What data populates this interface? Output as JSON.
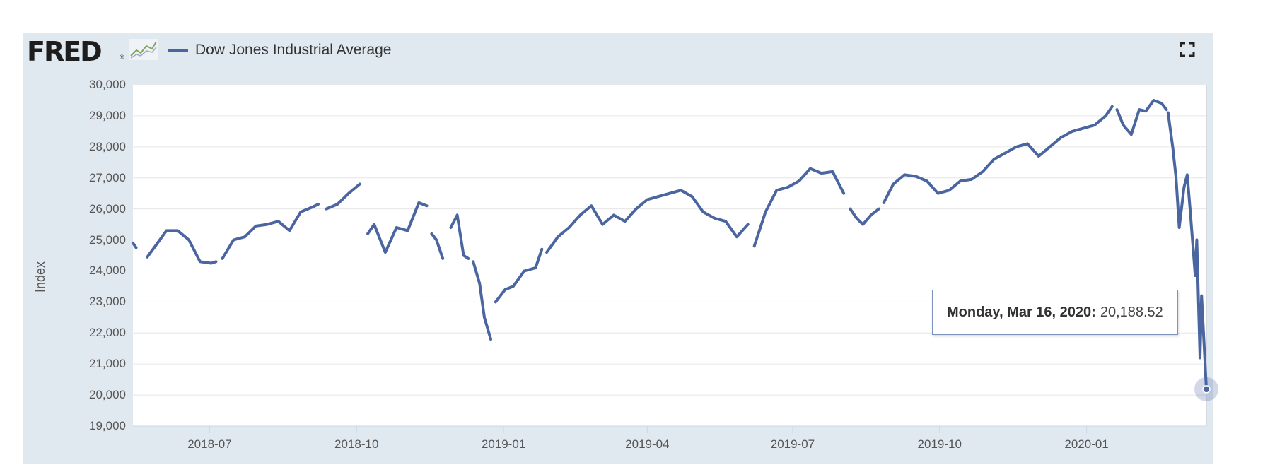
{
  "header": {
    "logo_text": "FRED",
    "logo_reg": "®",
    "legend_label": "Dow Jones Industrial Average",
    "line_color": "#4a65a0"
  },
  "tooltip": {
    "date_label": "Monday, Mar 16, 2020:",
    "value_label": "20,188.52"
  },
  "chart_data": {
    "type": "line",
    "title": "",
    "xlabel": "",
    "ylabel": "Index",
    "ylim": [
      19000,
      30000
    ],
    "xlim": [
      "2018-05-14",
      "2020-03-16"
    ],
    "y_ticks": [
      "19,000",
      "20,000",
      "21,000",
      "22,000",
      "23,000",
      "24,000",
      "25,000",
      "26,000",
      "27,000",
      "28,000",
      "29,000",
      "30,000"
    ],
    "x_ticks": [
      "2018-07",
      "2018-10",
      "2019-01",
      "2019-04",
      "2019-07",
      "2019-10",
      "2020-01"
    ],
    "grid": true,
    "series": [
      {
        "name": "Dow Jones Industrial Average",
        "color": "#4a65a0",
        "segments": [
          {
            "x": [
              "2018-05-14",
              "2018-05-16"
            ],
            "y": [
              24900,
              24750
            ]
          },
          {
            "x": [
              "2018-05-23",
              "2018-05-28",
              "2018-06-04",
              "2018-06-11",
              "2018-06-18",
              "2018-06-25",
              "2018-07-02",
              "2018-07-05"
            ],
            "y": [
              24450,
              24800,
              25300,
              25300,
              25000,
              24300,
              24250,
              24300
            ]
          },
          {
            "x": [
              "2018-07-09",
              "2018-07-16",
              "2018-07-23",
              "2018-07-30",
              "2018-08-06",
              "2018-08-13",
              "2018-08-20",
              "2018-08-27",
              "2018-09-03",
              "2018-09-07"
            ],
            "y": [
              24400,
              25000,
              25100,
              25450,
              25500,
              25600,
              25300,
              25900,
              26050,
              26150
            ]
          },
          {
            "x": [
              "2018-09-12",
              "2018-09-19",
              "2018-09-26",
              "2018-10-03"
            ],
            "y": [
              26000,
              26150,
              26500,
              26800
            ]
          },
          {
            "x": [
              "2018-10-08",
              "2018-10-12",
              "2018-10-19",
              "2018-10-26",
              "2018-11-02",
              "2018-11-09",
              "2018-11-14"
            ],
            "y": [
              25200,
              25500,
              24600,
              25400,
              25300,
              26200,
              26100
            ]
          },
          {
            "x": [
              "2018-11-17",
              "2018-11-20",
              "2018-11-24"
            ],
            "y": [
              25200,
              25000,
              24400
            ]
          },
          {
            "x": [
              "2018-11-29",
              "2018-12-03",
              "2018-12-07",
              "2018-12-10"
            ],
            "y": [
              25400,
              25800,
              24500,
              24400
            ]
          },
          {
            "x": [
              "2018-12-13",
              "2018-12-17",
              "2018-12-20",
              "2018-12-24"
            ],
            "y": [
              24300,
              23600,
              22500,
              21800
            ]
          },
          {
            "x": [
              "2018-12-27",
              "2019-01-02",
              "2019-01-07",
              "2019-01-14",
              "2019-01-21",
              "2019-01-25"
            ],
            "y": [
              23000,
              23400,
              23500,
              24000,
              24100,
              24700
            ]
          },
          {
            "x": [
              "2019-01-28",
              "2019-02-04",
              "2019-02-11",
              "2019-02-18",
              "2019-02-25",
              "2019-03-04",
              "2019-03-11",
              "2019-03-18",
              "2019-03-25",
              "2019-04-01",
              "2019-04-08",
              "2019-04-15",
              "2019-04-22",
              "2019-04-29",
              "2019-05-06",
              "2019-05-13",
              "2019-05-20",
              "2019-05-27",
              "2019-06-03"
            ],
            "y": [
              24600,
              25100,
              25400,
              25800,
              26100,
              25500,
              25800,
              25600,
              26000,
              26300,
              26400,
              26500,
              26600,
              26400,
              25900,
              25700,
              25600,
              25100,
              25500
            ]
          },
          {
            "x": [
              "2019-06-07",
              "2019-06-14",
              "2019-06-21",
              "2019-06-28",
              "2019-07-05",
              "2019-07-12",
              "2019-07-19",
              "2019-07-26",
              "2019-08-02"
            ],
            "y": [
              24800,
              25900,
              26600,
              26700,
              26900,
              27300,
              27150,
              27200,
              26500
            ]
          },
          {
            "x": [
              "2019-08-06",
              "2019-08-10",
              "2019-08-14",
              "2019-08-19",
              "2019-08-24"
            ],
            "y": [
              26000,
              25700,
              25500,
              25800,
              26000
            ]
          },
          {
            "x": [
              "2019-08-27",
              "2019-09-02",
              "2019-09-09",
              "2019-09-16",
              "2019-09-23",
              "2019-09-30",
              "2019-10-07",
              "2019-10-14",
              "2019-10-21",
              "2019-10-28",
              "2019-11-04",
              "2019-11-11",
              "2019-11-18",
              "2019-11-25",
              "2019-12-02",
              "2019-12-09",
              "2019-12-16",
              "2019-12-23",
              "2019-12-30",
              "2020-01-06",
              "2020-01-13",
              "2020-01-17"
            ],
            "y": [
              26200,
              26800,
              27100,
              27050,
              26900,
              26500,
              26600,
              26900,
              26950,
              27200,
              27600,
              27800,
              28000,
              28100,
              27700,
              28000,
              28300,
              28500,
              28600,
              28700,
              29000,
              29300
            ]
          },
          {
            "x": [
              "2020-01-20",
              "2020-01-24",
              "2020-01-29",
              "2020-02-03",
              "2020-02-07",
              "2020-02-12",
              "2020-02-17",
              "2020-02-20"
            ],
            "y": [
              29200,
              28700,
              28400,
              29200,
              29150,
              29500,
              29400,
              29200
            ]
          },
          {
            "x": [
              "2020-02-21",
              "2020-02-24",
              "2020-02-26",
              "2020-02-28",
              "2020-03-02",
              "2020-03-04",
              "2020-03-06",
              "2020-03-09",
              "2020-03-10",
              "2020-03-12",
              "2020-03-13",
              "2020-03-16"
            ],
            "y": [
              29100,
              27960,
              27000,
              25400,
              26700,
              27100,
              25860,
              23850,
              25000,
              21200,
              23200,
              20188.52
            ]
          }
        ]
      }
    ]
  }
}
